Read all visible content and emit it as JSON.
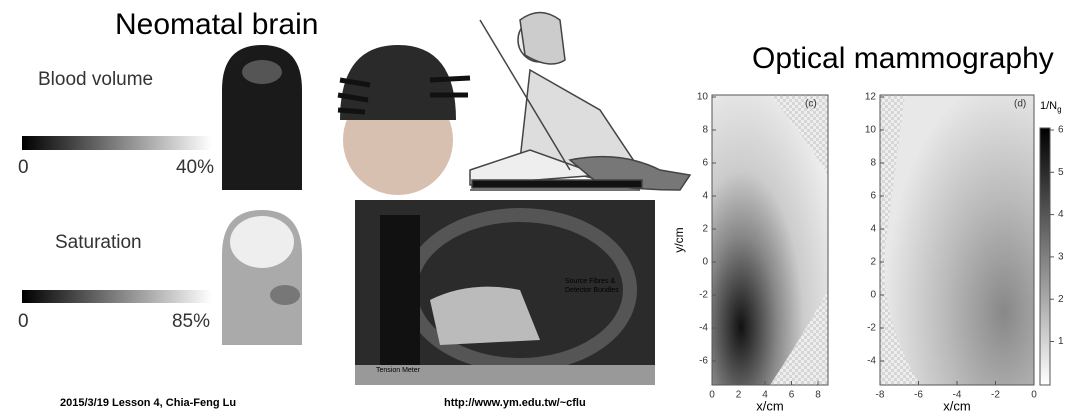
{
  "header": {
    "title_left": "Neomatal brain",
    "title_right": "Optical mammography"
  },
  "panels": [
    {
      "label": "Blood volume",
      "scale_min": "0",
      "scale_max": "40%"
    },
    {
      "label": "Saturation",
      "scale_min": "0",
      "scale_max": "85%"
    }
  ],
  "photo": {
    "labels": [
      "Source Fibres &",
      "Detector Bundles",
      "Tension Meter"
    ]
  },
  "plots": [
    {
      "tag": "(c)",
      "ylabel": "y/cm",
      "xlabel": "x/cm",
      "yticks": [
        10,
        8,
        6,
        4,
        2,
        0,
        -2,
        -4,
        -6
      ],
      "xticks": [
        0,
        2,
        4,
        6,
        8
      ]
    },
    {
      "tag": "(d)",
      "xlabel": "x/cm",
      "yticks": [
        12,
        10,
        8,
        6,
        4,
        2,
        0,
        -2,
        -4
      ],
      "xticks": [
        -8,
        -6,
        -4,
        -2,
        0
      ]
    }
  ],
  "colorbar": {
    "label": "1/N",
    "subscript": "g",
    "ticks": [
      6,
      5,
      4,
      3,
      2,
      1
    ]
  },
  "footer": {
    "left": "2015/3/19 Lesson 4, Chia-Feng Lu",
    "right": "http://www.ym.edu.tw/~cflu"
  }
}
